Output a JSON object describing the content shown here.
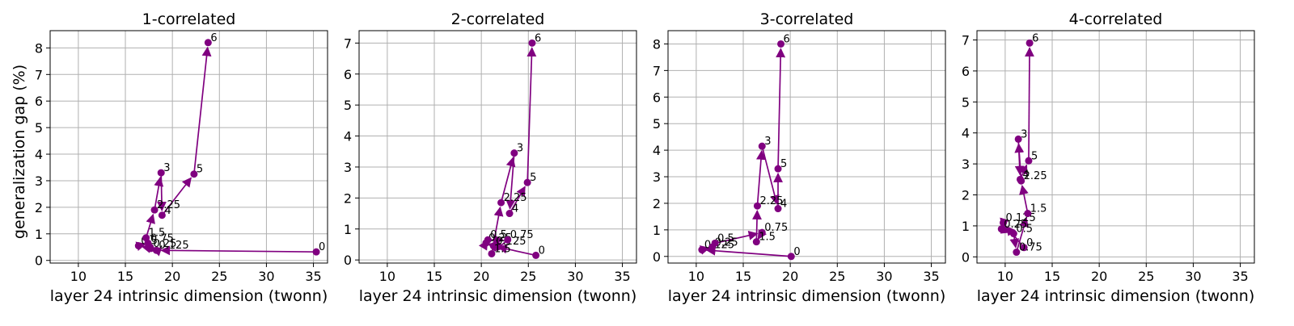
{
  "figure": {
    "ylabel": "generalization gap (%)",
    "color": "#800080"
  },
  "chart_data": [
    {
      "type": "line",
      "title": "1-correlated",
      "xlabel": "layer 24 intrinsic dimension (twonn)",
      "ylabel": "generalization gap (%)",
      "xlim": [
        7,
        36.5
      ],
      "ylim": [
        -0.1,
        8.65
      ],
      "xticks": [
        10,
        15,
        20,
        25,
        30,
        35
      ],
      "yticks": [
        0,
        1,
        2,
        3,
        4,
        5,
        6,
        7,
        8
      ],
      "grid": true,
      "points": [
        {
          "label": "0",
          "x": 35.3,
          "y": 0.32
        },
        {
          "label": "0.125",
          "x": 18.3,
          "y": 0.38
        },
        {
          "label": "0.25",
          "x": 17.7,
          "y": 0.45
        },
        {
          "label": "0.5",
          "x": 16.4,
          "y": 0.55
        },
        {
          "label": "0.75",
          "x": 17.4,
          "y": 0.65
        },
        {
          "label": "1.5",
          "x": 17.2,
          "y": 0.85
        },
        {
          "label": "2.25",
          "x": 18.1,
          "y": 1.9
        },
        {
          "label": "3",
          "x": 18.8,
          "y": 3.3
        },
        {
          "label": "4",
          "x": 18.9,
          "y": 1.7
        },
        {
          "label": "5",
          "x": 22.3,
          "y": 3.25
        },
        {
          "label": "6",
          "x": 23.8,
          "y": 8.2
        }
      ]
    },
    {
      "type": "line",
      "title": "2-correlated",
      "xlabel": "layer 24 intrinsic dimension (twonn)",
      "ylabel": "",
      "xlim": [
        7,
        36.5
      ],
      "ylim": [
        -0.1,
        7.4
      ],
      "xticks": [
        10,
        15,
        20,
        25,
        30,
        35
      ],
      "yticks": [
        0,
        1,
        2,
        3,
        4,
        5,
        6,
        7
      ],
      "grid": true,
      "points": [
        {
          "label": "0",
          "x": 25.8,
          "y": 0.15
        },
        {
          "label": "0.125",
          "x": 21.3,
          "y": 0.45
        },
        {
          "label": "0.25",
          "x": 20.5,
          "y": 0.55
        },
        {
          "label": "0.5",
          "x": 20.7,
          "y": 0.65
        },
        {
          "label": "0.75",
          "x": 22.8,
          "y": 0.65
        },
        {
          "label": "1.5",
          "x": 21.1,
          "y": 0.2
        },
        {
          "label": "2.25",
          "x": 22.1,
          "y": 1.85
        },
        {
          "label": "3",
          "x": 23.5,
          "y": 3.45
        },
        {
          "label": "4",
          "x": 23.0,
          "y": 1.5
        },
        {
          "label": "5",
          "x": 24.9,
          "y": 2.5
        },
        {
          "label": "6",
          "x": 25.4,
          "y": 7.0
        }
      ]
    },
    {
      "type": "line",
      "title": "3-correlated",
      "xlabel": "layer 24 intrinsic dimension (twonn)",
      "ylabel": "",
      "xlim": [
        7,
        36.5
      ],
      "ylim": [
        -0.25,
        8.5
      ],
      "xticks": [
        10,
        15,
        20,
        25,
        30,
        35
      ],
      "yticks": [
        0,
        1,
        2,
        3,
        4,
        5,
        6,
        7,
        8
      ],
      "grid": true,
      "points": [
        {
          "label": "0",
          "x": 20.1,
          "y": 0.0
        },
        {
          "label": "0.125",
          "x": 10.6,
          "y": 0.25
        },
        {
          "label": "0.25",
          "x": 11.7,
          "y": 0.35
        },
        {
          "label": "0.5",
          "x": 12.0,
          "y": 0.5
        },
        {
          "label": "0.75",
          "x": 17.0,
          "y": 0.9
        },
        {
          "label": "1.5",
          "x": 16.4,
          "y": 0.55
        },
        {
          "label": "2.25",
          "x": 16.5,
          "y": 1.9
        },
        {
          "label": "3",
          "x": 17.0,
          "y": 4.15
        },
        {
          "label": "4",
          "x": 18.7,
          "y": 1.8
        },
        {
          "label": "5",
          "x": 18.7,
          "y": 3.3
        },
        {
          "label": "6",
          "x": 19.0,
          "y": 8.0
        }
      ]
    },
    {
      "type": "line",
      "title": "4-correlated",
      "xlabel": "layer 24 intrinsic dimension (twonn)",
      "ylabel": "",
      "xlim": [
        7,
        36.5
      ],
      "ylim": [
        -0.2,
        7.3
      ],
      "xticks": [
        10,
        15,
        20,
        25,
        30,
        35
      ],
      "yticks": [
        0,
        1,
        2,
        3,
        4,
        5,
        6,
        7
      ],
      "grid": true,
      "points": [
        {
          "label": "0",
          "x": 12.0,
          "y": 0.3
        },
        {
          "label": "0.125",
          "x": 9.8,
          "y": 1.1
        },
        {
          "label": "0.25",
          "x": 9.6,
          "y": 0.9
        },
        {
          "label": "0.5",
          "x": 10.9,
          "y": 0.75
        },
        {
          "label": "0.75",
          "x": 11.2,
          "y": 0.15
        },
        {
          "label": "1.5",
          "x": 12.4,
          "y": 1.4
        },
        {
          "label": "2.25",
          "x": 11.7,
          "y": 2.45
        },
        {
          "label": "3",
          "x": 11.4,
          "y": 3.8
        },
        {
          "label": "4",
          "x": 11.6,
          "y": 2.5
        },
        {
          "label": "5",
          "x": 12.5,
          "y": 3.1
        },
        {
          "label": "6",
          "x": 12.6,
          "y": 6.9
        }
      ]
    }
  ]
}
